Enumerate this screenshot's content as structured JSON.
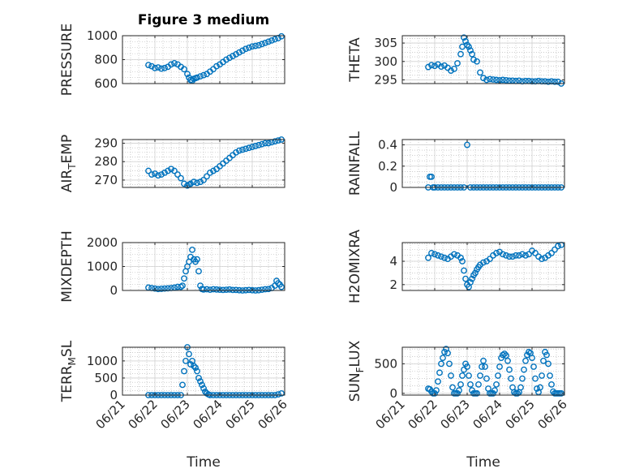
{
  "figure_title": "Figure 3 medium",
  "colors": {
    "marker": "#0072BD",
    "axis": "#262626",
    "grid": "#b0b0b0"
  },
  "chart_data": [
    {
      "type": "scatter",
      "title": "Figure 3 medium",
      "ylabel": "PRESSURE",
      "ylim": [
        600,
        1000
      ],
      "yticks": [
        600,
        800,
        1000
      ],
      "tick_labels": [
        "600",
        "800",
        "1000"
      ],
      "xlim": [
        0,
        5
      ],
      "grid": true,
      "x": [
        0.8,
        0.9,
        1.0,
        1.1,
        1.2,
        1.3,
        1.4,
        1.5,
        1.6,
        1.7,
        1.8,
        1.9,
        2.0,
        2.05,
        2.1,
        2.15,
        2.2,
        2.25,
        2.3,
        2.4,
        2.5,
        2.6,
        2.7,
        2.8,
        2.9,
        3.0,
        3.1,
        3.2,
        3.3,
        3.4,
        3.5,
        3.6,
        3.7,
        3.8,
        3.9,
        4.0,
        4.1,
        4.2,
        4.3,
        4.4,
        4.5,
        4.6,
        4.7,
        4.8,
        4.9
      ],
      "y": [
        755,
        745,
        730,
        735,
        725,
        730,
        740,
        760,
        770,
        760,
        740,
        720,
        680,
        650,
        630,
        625,
        640,
        645,
        650,
        660,
        670,
        680,
        700,
        720,
        745,
        760,
        780,
        800,
        815,
        830,
        845,
        860,
        875,
        890,
        900,
        910,
        915,
        920,
        930,
        940,
        950,
        960,
        970,
        980,
        995
      ]
    },
    {
      "type": "scatter",
      "ylabel": "THETA",
      "ylim": [
        294,
        307
      ],
      "yticks": [
        295,
        300,
        305
      ],
      "tick_labels": [
        "295",
        "300",
        "305"
      ],
      "xlim": [
        0,
        5
      ],
      "grid": true,
      "x": [
        0.8,
        0.9,
        1.0,
        1.1,
        1.2,
        1.3,
        1.4,
        1.5,
        1.6,
        1.7,
        1.8,
        1.85,
        1.9,
        1.95,
        2.0,
        2.05,
        2.1,
        2.15,
        2.2,
        2.3,
        2.4,
        2.5,
        2.6,
        2.7,
        2.8,
        2.9,
        3.0,
        3.1,
        3.2,
        3.3,
        3.4,
        3.5,
        3.6,
        3.7,
        3.8,
        3.9,
        4.0,
        4.1,
        4.2,
        4.3,
        4.4,
        4.5,
        4.6,
        4.7,
        4.8,
        4.9
      ],
      "y": [
        298.5,
        299.0,
        298.8,
        299.2,
        298.6,
        298.9,
        298.3,
        297.5,
        298.0,
        299.5,
        302.0,
        304.0,
        306.5,
        305.5,
        304.5,
        304.0,
        303.0,
        302.0,
        300.5,
        300.0,
        297.0,
        295.5,
        295.0,
        295.2,
        295.1,
        295.0,
        294.9,
        295.0,
        294.9,
        294.8,
        294.8,
        294.7,
        294.8,
        294.6,
        294.7,
        294.7,
        294.6,
        294.6,
        294.7,
        294.6,
        294.6,
        294.5,
        294.6,
        294.5,
        294.5,
        294.0
      ]
    },
    {
      "type": "scatter",
      "ylabel": "AIR_TEMP",
      "ylim": [
        266,
        292
      ],
      "yticks": [
        270,
        280,
        290
      ],
      "tick_labels": [
        "270",
        "280",
        "290"
      ],
      "xlim": [
        0,
        5
      ],
      "grid": true,
      "x": [
        0.8,
        0.9,
        1.0,
        1.1,
        1.2,
        1.3,
        1.4,
        1.5,
        1.6,
        1.7,
        1.8,
        1.9,
        2.0,
        2.05,
        2.1,
        2.2,
        2.3,
        2.4,
        2.5,
        2.6,
        2.7,
        2.8,
        2.9,
        3.0,
        3.1,
        3.2,
        3.3,
        3.4,
        3.5,
        3.6,
        3.7,
        3.8,
        3.9,
        4.0,
        4.1,
        4.2,
        4.3,
        4.4,
        4.5,
        4.6,
        4.7,
        4.8,
        4.9
      ],
      "y": [
        275,
        273,
        273.5,
        272.5,
        273,
        274,
        275,
        276,
        275,
        273,
        271,
        268,
        267,
        267.5,
        268,
        269,
        268.5,
        269,
        270,
        272,
        274,
        275,
        276,
        277.5,
        279,
        280.5,
        282,
        283.5,
        285,
        286,
        286.5,
        287,
        287.5,
        288,
        288.5,
        289,
        289.5,
        290,
        290,
        290.5,
        291,
        291.5,
        292
      ]
    },
    {
      "type": "scatter",
      "ylabel": "RAINFALL",
      "ylim": [
        0,
        0.45
      ],
      "yticks": [
        0,
        0.2,
        0.4
      ],
      "tick_labels": [
        "0",
        "0.2",
        "0.4"
      ],
      "xlim": [
        0,
        5
      ],
      "grid": true,
      "x": [
        0.8,
        0.85,
        0.9,
        0.95,
        1.0,
        1.1,
        1.2,
        1.3,
        1.4,
        1.5,
        1.6,
        1.7,
        1.8,
        1.9,
        2.0,
        2.1,
        2.2,
        2.3,
        2.4,
        2.5,
        2.6,
        2.7,
        2.8,
        2.9,
        3.0,
        3.1,
        3.2,
        3.3,
        3.4,
        3.5,
        3.6,
        3.7,
        3.8,
        3.9,
        4.0,
        4.1,
        4.2,
        4.3,
        4.4,
        4.5,
        4.6,
        4.7,
        4.8,
        4.9
      ],
      "y": [
        0,
        0.1,
        0.1,
        0,
        0,
        0,
        0,
        0,
        0,
        0,
        0,
        0,
        0,
        0,
        0.4,
        0,
        0,
        0,
        0,
        0,
        0,
        0,
        0,
        0,
        0,
        0,
        0,
        0,
        0,
        0,
        0,
        0,
        0,
        0,
        0,
        0,
        0,
        0,
        0,
        0,
        0,
        0,
        0,
        0
      ]
    },
    {
      "type": "scatter",
      "ylabel": "MIXDEPTH",
      "ylim": [
        0,
        2000
      ],
      "yticks": [
        0,
        1000,
        2000
      ],
      "tick_labels": [
        "0",
        "1000",
        "2000"
      ],
      "xlim": [
        0,
        5
      ],
      "grid": true,
      "x": [
        0.8,
        0.9,
        1.0,
        1.1,
        1.2,
        1.3,
        1.4,
        1.5,
        1.6,
        1.7,
        1.8,
        1.85,
        1.9,
        1.95,
        2.0,
        2.05,
        2.1,
        2.15,
        2.2,
        2.25,
        2.3,
        2.35,
        2.4,
        2.45,
        2.5,
        2.6,
        2.7,
        2.8,
        2.9,
        3.0,
        3.1,
        3.2,
        3.3,
        3.4,
        3.5,
        3.6,
        3.7,
        3.8,
        3.9,
        4.0,
        4.1,
        4.2,
        4.3,
        4.4,
        4.5,
        4.6,
        4.7,
        4.75,
        4.8,
        4.85,
        4.9
      ],
      "y": [
        120,
        100,
        80,
        60,
        70,
        80,
        90,
        100,
        120,
        150,
        150,
        200,
        500,
        800,
        1000,
        1200,
        1400,
        1700,
        1300,
        1200,
        1300,
        800,
        200,
        60,
        40,
        50,
        30,
        50,
        40,
        30,
        20,
        30,
        40,
        20,
        20,
        10,
        0,
        10,
        20,
        10,
        0,
        10,
        30,
        50,
        60,
        100,
        200,
        400,
        300,
        250,
        150
      ]
    },
    {
      "type": "scatter",
      "ylabel": "H2OMIXRA",
      "ylim": [
        1.5,
        5.6
      ],
      "yticks": [
        2,
        4
      ],
      "tick_labels": [
        "2",
        "4"
      ],
      "xlim": [
        0,
        5
      ],
      "grid": true,
      "x": [
        0.8,
        0.9,
        1.0,
        1.1,
        1.2,
        1.3,
        1.4,
        1.5,
        1.6,
        1.7,
        1.8,
        1.85,
        1.9,
        1.95,
        2.0,
        2.05,
        2.1,
        2.15,
        2.2,
        2.25,
        2.3,
        2.35,
        2.4,
        2.5,
        2.6,
        2.7,
        2.8,
        2.9,
        3.0,
        3.1,
        3.2,
        3.3,
        3.4,
        3.5,
        3.6,
        3.7,
        3.8,
        3.9,
        4.0,
        4.1,
        4.2,
        4.3,
        4.4,
        4.5,
        4.6,
        4.7,
        4.8,
        4.9
      ],
      "y": [
        4.3,
        4.7,
        4.6,
        4.5,
        4.4,
        4.3,
        4.2,
        4.4,
        4.6,
        4.5,
        4.3,
        4.0,
        3.2,
        2.5,
        2.0,
        1.8,
        2.2,
        2.5,
        2.8,
        3.0,
        3.3,
        3.5,
        3.7,
        3.9,
        4.0,
        4.2,
        4.5,
        4.7,
        4.8,
        4.6,
        4.5,
        4.4,
        4.4,
        4.5,
        4.5,
        4.6,
        4.5,
        4.6,
        4.9,
        4.7,
        4.4,
        4.2,
        4.3,
        4.5,
        4.7,
        5.0,
        5.3,
        5.4
      ]
    },
    {
      "type": "scatter",
      "ylabel": "TERR_MSL",
      "ylim": [
        0,
        1400
      ],
      "yticks": [
        0,
        500,
        1000
      ],
      "tick_labels": [
        "0",
        "500",
        "1000"
      ],
      "xlim": [
        0,
        5
      ],
      "grid": true,
      "x": [
        0.8,
        0.9,
        1.0,
        1.1,
        1.2,
        1.3,
        1.4,
        1.5,
        1.6,
        1.7,
        1.8,
        1.85,
        1.9,
        1.95,
        2.0,
        2.05,
        2.1,
        2.15,
        2.2,
        2.25,
        2.3,
        2.35,
        2.4,
        2.45,
        2.5,
        2.55,
        2.6,
        2.65,
        2.7,
        2.8,
        2.9,
        3.0,
        3.1,
        3.2,
        3.3,
        3.4,
        3.5,
        3.6,
        3.7,
        3.8,
        3.9,
        4.0,
        4.1,
        4.2,
        4.3,
        4.4,
        4.5,
        4.6,
        4.7,
        4.8,
        4.9
      ],
      "y": [
        0,
        0,
        0,
        0,
        0,
        0,
        0,
        0,
        0,
        0,
        0,
        300,
        700,
        1000,
        1400,
        1200,
        900,
        1000,
        850,
        800,
        700,
        500,
        400,
        300,
        200,
        100,
        50,
        20,
        0,
        0,
        0,
        0,
        0,
        0,
        0,
        0,
        0,
        0,
        0,
        0,
        0,
        0,
        0,
        0,
        0,
        0,
        0,
        0,
        0,
        20,
        50
      ]
    },
    {
      "type": "scatter",
      "ylabel": "SUN_FLUX",
      "ylim": [
        -30,
        780
      ],
      "yticks": [
        0,
        500
      ],
      "tick_labels": [
        "0",
        "500"
      ],
      "xlim": [
        0,
        5
      ],
      "xticks": [
        0,
        1,
        2,
        3,
        4,
        5
      ],
      "xticklabels": [
        "06/21",
        "06/22",
        "06/23",
        "06/24",
        "06/25",
        "06/26"
      ],
      "xlabel": "Time",
      "grid": true,
      "x": [
        0.8,
        0.85,
        0.9,
        0.95,
        1.0,
        1.05,
        1.1,
        1.15,
        1.2,
        1.25,
        1.3,
        1.35,
        1.4,
        1.45,
        1.5,
        1.55,
        1.6,
        1.65,
        1.7,
        1.75,
        1.8,
        1.85,
        1.9,
        1.95,
        2.0,
        2.05,
        2.1,
        2.15,
        2.2,
        2.25,
        2.3,
        2.35,
        2.4,
        2.45,
        2.5,
        2.55,
        2.6,
        2.65,
        2.7,
        2.75,
        2.8,
        2.85,
        2.9,
        2.95,
        3.0,
        3.05,
        3.1,
        3.15,
        3.2,
        3.25,
        3.3,
        3.35,
        3.4,
        3.45,
        3.5,
        3.55,
        3.6,
        3.65,
        3.7,
        3.75,
        3.8,
        3.85,
        3.9,
        3.95,
        4.0,
        4.05,
        4.1,
        4.15,
        4.2,
        4.25,
        4.3,
        4.35,
        4.4,
        4.45,
        4.5,
        4.55,
        4.6,
        4.65,
        4.7,
        4.75,
        4.8,
        4.85,
        4.9
      ],
      "y": [
        80,
        70,
        30,
        0,
        0,
        50,
        200,
        350,
        500,
        600,
        700,
        750,
        680,
        500,
        300,
        100,
        0,
        0,
        0,
        50,
        150,
        300,
        400,
        500,
        450,
        300,
        150,
        50,
        0,
        0,
        0,
        150,
        300,
        450,
        550,
        450,
        250,
        80,
        0,
        0,
        0,
        50,
        150,
        300,
        450,
        600,
        650,
        670,
        640,
        550,
        400,
        250,
        100,
        20,
        0,
        0,
        20,
        100,
        250,
        400,
        550,
        650,
        700,
        680,
        600,
        450,
        250,
        80,
        20,
        100,
        300,
        550,
        700,
        650,
        500,
        300,
        150,
        30,
        0,
        0,
        0,
        0,
        0
      ]
    }
  ]
}
